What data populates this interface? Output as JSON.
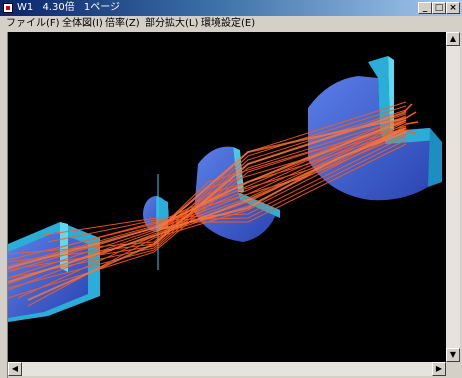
{
  "window": {
    "title": "W1",
    "zoom": "4.30倍",
    "page": "1ページ",
    "minimize_glyph": "_",
    "maximize_glyph": "□",
    "close_glyph": "×"
  },
  "menu": {
    "items": [
      {
        "label": "ファイル(F)"
      },
      {
        "label": "全体図(I)"
      },
      {
        "label": "倍率(Z)"
      },
      {
        "label": "部分拡大(L)"
      },
      {
        "label": "環境設定(E)"
      }
    ]
  },
  "scrollbar": {
    "up_glyph": "▲",
    "down_glyph": "▼",
    "left_glyph": "◀",
    "right_glyph": "▶"
  },
  "colors": {
    "background": "#000000",
    "lens_blue": "#3a5fd0",
    "lens_cyan": "#2aaed8",
    "ray_orange": "#ff5a1e"
  }
}
